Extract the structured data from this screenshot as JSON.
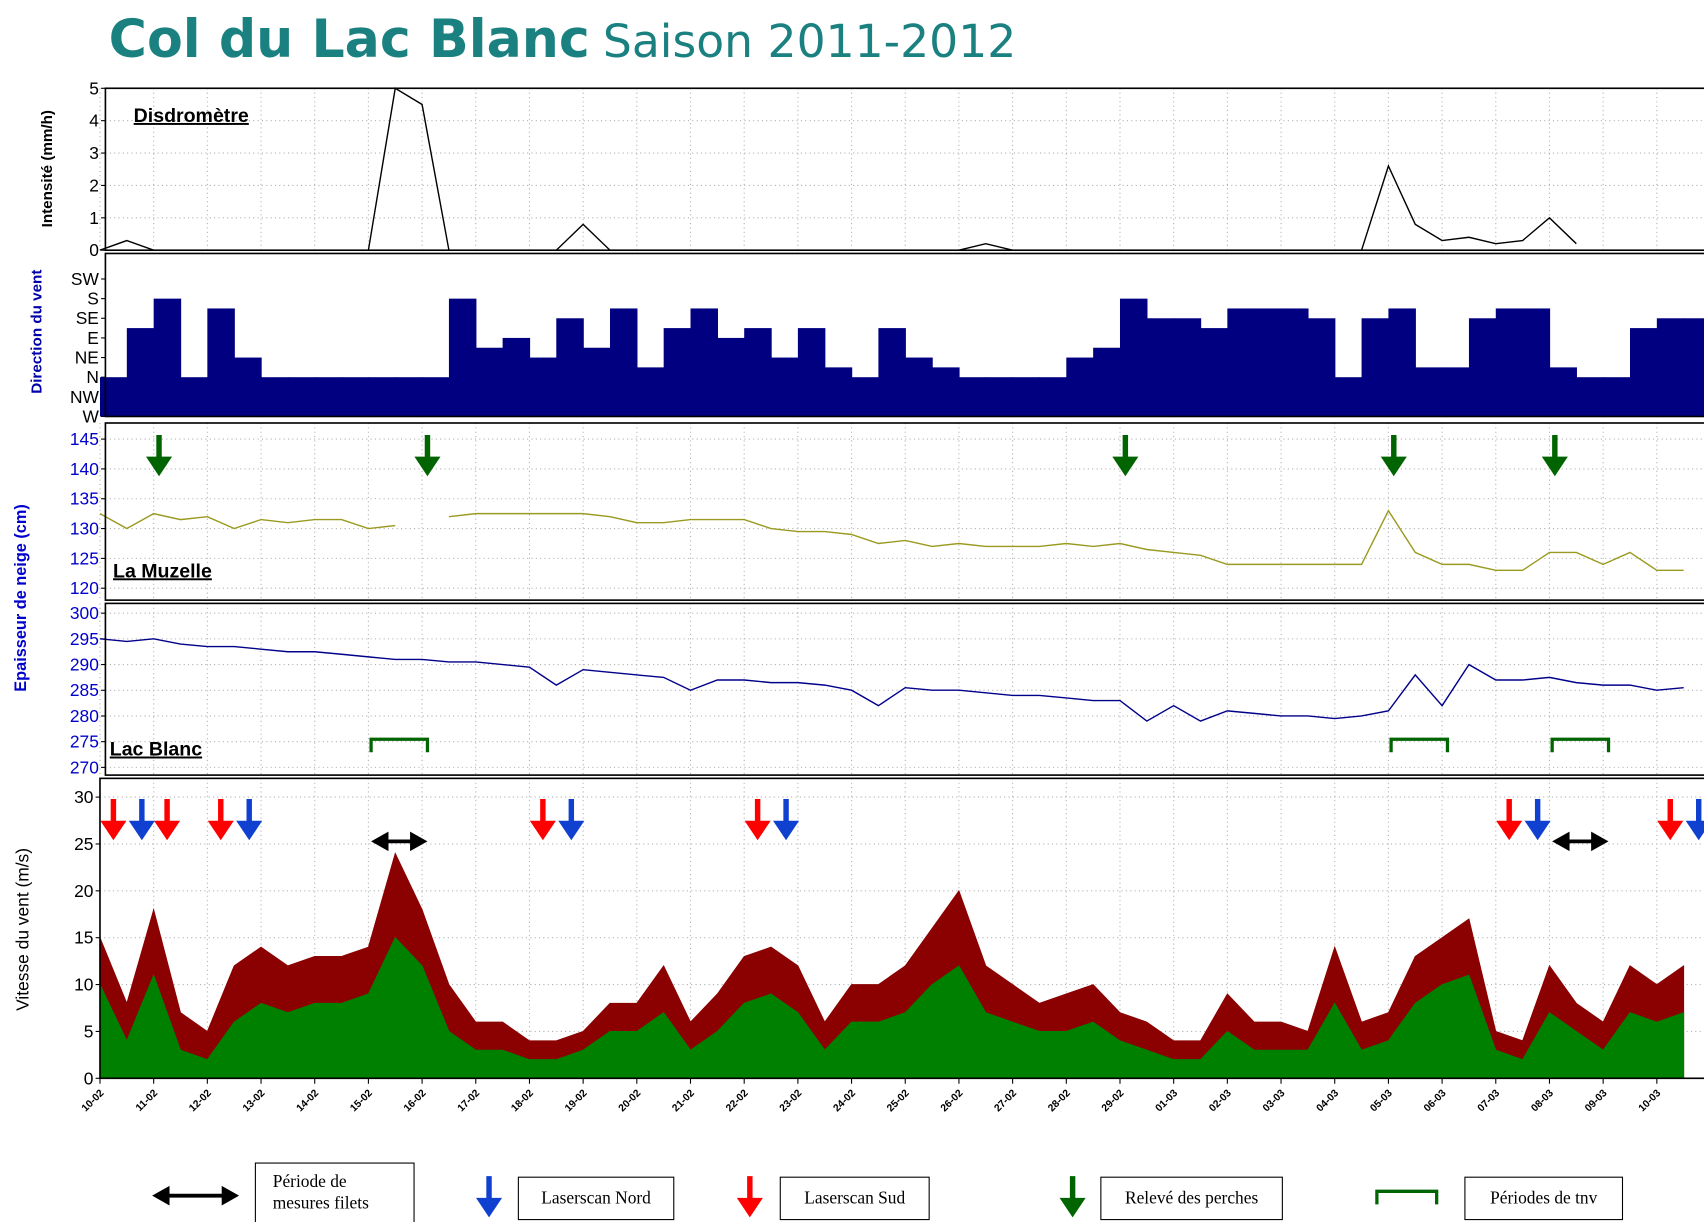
{
  "title": "Col du Lac Blanc",
  "subtitle": "Saison 2011-2012",
  "snow_ylabel": "Epaisseur de neige (cm)",
  "snow_ylabel_color": "#0000cc",
  "chart_data": [
    {
      "type": "line",
      "title": "Disdromètre",
      "ylabel": "Intensité (mm/h)",
      "ylabel_color": "#000000",
      "tick_color": "#000000",
      "ylim": [
        0,
        5
      ],
      "yticks": [
        0,
        1,
        2,
        3,
        4,
        5
      ],
      "grid": true,
      "series": [
        {
          "color": "#000000",
          "values": [
            0,
            0.3,
            0,
            0,
            0,
            0,
            0,
            0,
            0,
            0,
            0,
            5,
            4.5,
            0,
            0,
            0,
            0,
            0,
            0.8,
            0,
            0,
            0,
            0,
            0,
            0,
            0,
            0,
            0,
            0,
            0,
            0,
            0,
            0,
            0.2,
            0,
            0,
            0,
            0,
            0,
            0,
            0,
            0,
            0,
            0,
            0,
            0,
            0,
            0,
            2.6,
            0.8,
            0.3,
            0.4,
            0.2,
            0.3,
            1,
            0.2,
            null,
            null,
            null,
            null
          ]
        }
      ]
    },
    {
      "type": "bar",
      "ylabel": "Direction du vent",
      "ylabel_color": "#0000aa",
      "tick_color": "#000000",
      "ylim": [
        0,
        8.3
      ],
      "grid": false,
      "yticks": [
        {
          "value": 0,
          "label": "W"
        },
        {
          "value": 1,
          "label": "NW"
        },
        {
          "value": 2,
          "label": "N"
        },
        {
          "value": 3,
          "label": "NE"
        },
        {
          "value": 4,
          "label": "E"
        },
        {
          "value": 5,
          "label": "SE"
        },
        {
          "value": 6,
          "label": "S"
        },
        {
          "value": 7,
          "label": "SW"
        }
      ],
      "series": [
        {
          "color": "#000080",
          "values": [
            2,
            4.5,
            6,
            2,
            5.5,
            3,
            2,
            2,
            2,
            2,
            2,
            2,
            2,
            6,
            3.5,
            4,
            3,
            5,
            3.5,
            5.5,
            2.5,
            4.5,
            5.5,
            4,
            4.5,
            3,
            4.5,
            2.5,
            2,
            4.5,
            3,
            2.5,
            2,
            2,
            2,
            2,
            3,
            3.5,
            6,
            5,
            5,
            4.5,
            5.5,
            5.5,
            5.5,
            5,
            2,
            5,
            5.5,
            2.5,
            2.5,
            5,
            5.5,
            5.5,
            2.5,
            2,
            2,
            4.5,
            5,
            5
          ]
        }
      ]
    },
    {
      "type": "line",
      "title": "La Muzelle",
      "tick_color": "#0000cc",
      "ylim": [
        118,
        147.7
      ],
      "yticks": [
        120,
        125,
        130,
        135,
        140,
        145
      ],
      "grid": true,
      "perches": [
        "11-02",
        "16-02",
        "29-02",
        "05-03",
        "08-03"
      ],
      "perches_color": "#006400",
      "series": [
        {
          "color": "#9a9a20",
          "values": [
            132.5,
            130,
            132.5,
            131.5,
            132,
            130,
            131.5,
            131,
            131.5,
            131.5,
            130,
            130.5,
            null,
            132,
            132.5,
            132.5,
            132.5,
            132.5,
            132.5,
            132,
            131,
            131,
            131.5,
            131.5,
            131.5,
            130,
            129.5,
            129.5,
            129,
            127.5,
            128,
            127,
            127.5,
            127,
            127,
            127,
            127.5,
            127,
            127.5,
            126.5,
            126,
            125.5,
            124,
            124,
            124,
            124,
            124,
            124,
            133,
            126,
            124,
            124,
            123,
            123,
            126,
            126,
            124,
            126,
            123,
            123
          ]
        }
      ]
    },
    {
      "type": "line",
      "title": "Lac Blanc",
      "tick_color": "#0000cc",
      "ylim": [
        268.5,
        301.9
      ],
      "yticks": [
        270,
        275,
        280,
        285,
        290,
        295,
        300
      ],
      "grid": true,
      "tnv": [
        [
          "15-02",
          "16-02"
        ],
        [
          "05-03",
          "06-03"
        ],
        [
          "08-03",
          "09-03"
        ]
      ],
      "tnv_color": "#006400",
      "series": [
        {
          "color": "#00008b",
          "values": [
            295,
            294.5,
            295,
            294,
            293.5,
            293.5,
            293,
            292.5,
            292.5,
            292,
            291.5,
            291,
            291,
            290.5,
            290.5,
            290,
            289.5,
            286,
            289,
            288.5,
            288,
            287.5,
            285,
            287,
            287,
            286.5,
            286.5,
            286,
            285,
            282,
            285.5,
            285,
            285,
            284.5,
            284,
            284,
            283.5,
            283,
            283,
            279,
            282,
            279,
            281,
            280.5,
            280,
            280,
            279.5,
            280,
            281,
            288,
            282,
            290,
            287,
            287,
            287.5,
            286.5,
            286,
            286,
            285,
            285.5
          ]
        }
      ]
    },
    {
      "type": "area",
      "ylabel": "Vitesse du vent (m/s)",
      "ylabel_color": "#000000",
      "tick_color": "#000000",
      "ylim": [
        0,
        32
      ],
      "yticks": [
        0,
        5,
        10,
        15,
        20,
        25,
        30
      ],
      "grid": true,
      "categories": [
        "10-02",
        null,
        "11-02",
        null,
        "12-02",
        null,
        "13-02",
        null,
        "14-02",
        null,
        "15-02",
        null,
        "16-02",
        null,
        "17-02",
        null,
        "18-02",
        null,
        "19-02",
        null,
        "20-02",
        null,
        "21-02",
        null,
        "22-02",
        null,
        "23-02",
        null,
        "24-02",
        null,
        "25-02",
        null,
        "26-02",
        null,
        "27-02",
        null,
        "28-02",
        null,
        "29-02",
        null,
        "01-03",
        null,
        "02-03",
        null,
        "03-03",
        null,
        "04-03",
        null,
        "05-03",
        null,
        "06-03",
        null,
        "07-03",
        null,
        "08-03",
        null,
        "09-03",
        null,
        "10-03",
        null
      ],
      "laserscan_sud": [
        "10-02",
        "11-02",
        "12-02",
        "18-02",
        "22-02",
        "07-03",
        "10-03"
      ],
      "sud_color": "#ff0000",
      "laserscan_nord": [
        "10-02",
        "12-02",
        "18-02",
        "22-02",
        "07-03",
        "10-03"
      ],
      "nord_color": "#1040d0",
      "filets": [
        [
          "15-02",
          "16-02"
        ],
        [
          "08-03",
          "09-03"
        ]
      ],
      "filets_color": "#000000",
      "series": [
        {
          "color": "#8b0000",
          "values": [
            15,
            8,
            18,
            7,
            5,
            12,
            14,
            12,
            13,
            13,
            14,
            24,
            18,
            10,
            6,
            6,
            4,
            4,
            5,
            8,
            8,
            12,
            6,
            9,
            13,
            14,
            12,
            6,
            10,
            10,
            12,
            16,
            20,
            12,
            10,
            8,
            9,
            10,
            7,
            6,
            4,
            4,
            9,
            6,
            6,
            5,
            14,
            6,
            7,
            13,
            15,
            17,
            5,
            4,
            12,
            8,
            6,
            12,
            10,
            12
          ]
        },
        {
          "color": "#008000",
          "values": [
            10,
            4,
            11,
            3,
            2,
            6,
            8,
            7,
            8,
            8,
            9,
            15,
            12,
            5,
            3,
            3,
            2,
            2,
            3,
            5,
            5,
            7,
            3,
            5,
            8,
            9,
            7,
            3,
            6,
            6,
            7,
            10,
            12,
            7,
            6,
            5,
            5,
            6,
            4,
            3,
            2,
            2,
            5,
            3,
            3,
            3,
            8,
            3,
            4,
            8,
            10,
            11,
            3,
            2,
            7,
            5,
            3,
            7,
            6,
            7
          ]
        }
      ]
    }
  ],
  "legend": [
    {
      "label": "Période de mesures filets",
      "symbol": "double-arrow",
      "color": "#000000"
    },
    {
      "label": "Laserscan Nord",
      "symbol": "arrow",
      "color": "#1040d0"
    },
    {
      "label": "Laserscan Sud",
      "symbol": "arrow",
      "color": "#ff0000"
    },
    {
      "label": "Relevé des perches",
      "symbol": "arrow",
      "color": "#006400"
    },
    {
      "label": "Périodes de tnv",
      "symbol": "bracket",
      "color": "#006400"
    }
  ]
}
